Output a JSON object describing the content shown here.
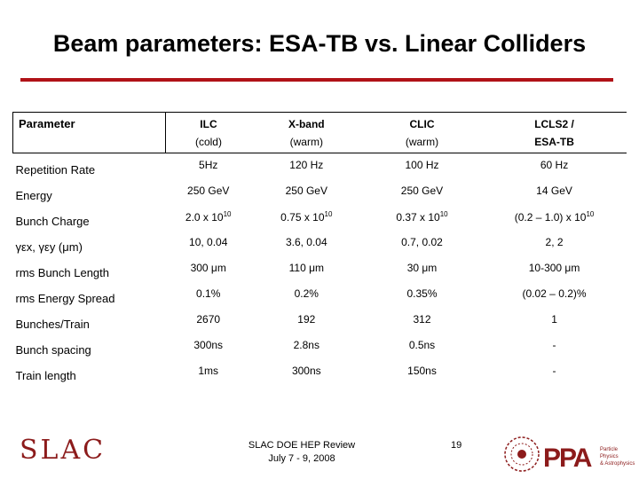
{
  "slide": {
    "title": "Beam parameters: ESA-TB vs. Linear Colliders"
  },
  "table": {
    "header": {
      "parameter": "Parameter",
      "columns": [
        {
          "name": "ILC",
          "sub": "(cold)"
        },
        {
          "name": "X-band",
          "sub": "(warm)"
        },
        {
          "name": "CLIC",
          "sub": "(warm)"
        },
        {
          "name": "LCLS2 /",
          "sub": "ESA-TB"
        }
      ]
    },
    "rows": [
      {
        "label": "Repetition Rate",
        "values": [
          "5Hz",
          "120 Hz",
          "100 Hz",
          "60 Hz"
        ]
      },
      {
        "label": "Energy",
        "values": [
          "250 GeV",
          "250 GeV",
          "250 GeV",
          "14 GeV"
        ]
      },
      {
        "label": "Bunch Charge",
        "values": [
          "2.0 x 10",
          "0.75 x 10",
          "0.37 x 10",
          "(0.2 – 1.0) x 10"
        ],
        "exponent": "10"
      },
      {
        "label": "γεx, γεy (μm)",
        "values": [
          "10, 0.04",
          "3.6, 0.04",
          "0.7, 0.02",
          "2, 2"
        ]
      },
      {
        "label": "rms Bunch Length",
        "values": [
          "300 μm",
          "110 μm",
          "30 μm",
          "10-300 μm"
        ]
      },
      {
        "label": "rms Energy Spread",
        "values": [
          "0.1%",
          "0.2%",
          "0.35%",
          "(0.02 – 0.2)%"
        ]
      },
      {
        "label": "Bunches/Train",
        "values": [
          "2670",
          "192",
          "312",
          "1"
        ]
      },
      {
        "label": "Bunch spacing",
        "values": [
          "300ns",
          "2.8ns",
          "0.5ns",
          "-"
        ]
      },
      {
        "label": "Train length",
        "values": [
          "1ms",
          "300ns",
          "150ns",
          "-"
        ]
      }
    ]
  },
  "footer": {
    "logo_left": "SLAC",
    "center_line1": "SLAC DOE HEP Review",
    "center_line2": "July 7 - 9, 2008",
    "page_number": "19",
    "logo_right": "PPA",
    "logo_right_sub1": "Particle Physics",
    "logo_right_sub2": "& Astrophysics"
  }
}
